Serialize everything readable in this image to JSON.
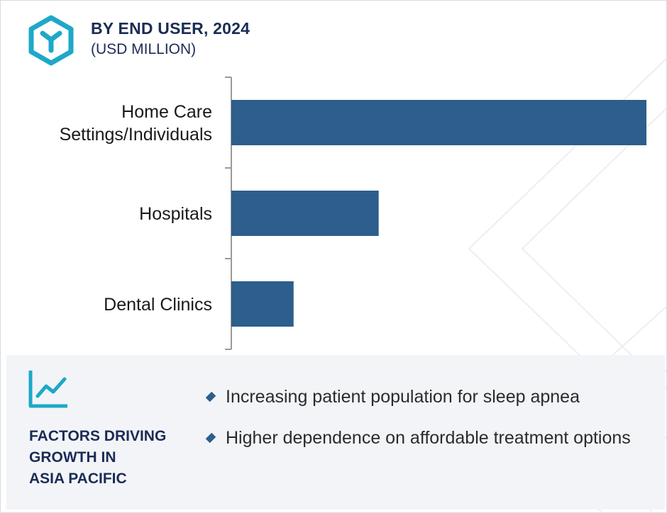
{
  "header": {
    "title": "BY END USER, 2024",
    "subtitle": "(USD MILLION)",
    "logo_icon": "hexagon-y-logo-icon"
  },
  "colors": {
    "bar": "#2d5e8c",
    "title": "#1b2c55",
    "logo": "#1ea8c8",
    "footer_bg": "#f3f4f8"
  },
  "chart_data": {
    "type": "bar",
    "orientation": "horizontal",
    "categories": [
      "Home Care Settings/Individuals",
      "Hospitals",
      "Dental Clinics"
    ],
    "category_lines": [
      [
        "Home Care",
        "Settings/Individuals"
      ],
      [
        "Hospitals"
      ],
      [
        "Dental Clinics"
      ]
    ],
    "values": [
      100,
      35.5,
      15
    ],
    "xlim": [
      0,
      100
    ],
    "title": "BY END USER, 2024",
    "subtitle": "(USD MILLION)",
    "xlabel": "",
    "ylabel": "",
    "grid": false,
    "legend": "none"
  },
  "footer": {
    "icon": "line-chart-icon",
    "title_lines": [
      "FACTORS DRIVING",
      "GROWTH IN",
      "ASIA PACIFIC"
    ],
    "bullets": [
      "Increasing patient population for sleep apnea",
      "Higher dependence on affordable treatment options"
    ],
    "bullet_icon": "diamond-bullet-icon"
  }
}
